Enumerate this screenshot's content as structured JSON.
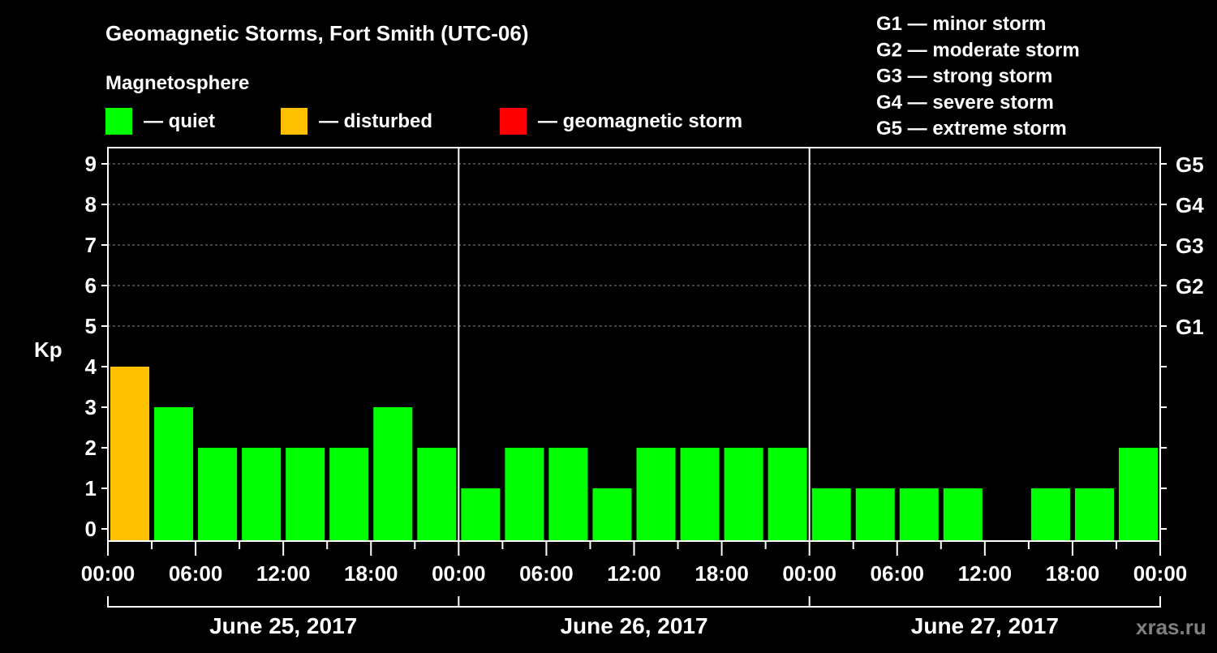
{
  "chart_data": {
    "type": "bar",
    "title": "Geomagnetic Storms, Fort Smith (UTC-06)",
    "legend_title": "Magnetosphere",
    "legend": [
      {
        "label": "— quiet",
        "color": "#00ff00"
      },
      {
        "label": "— disturbed",
        "color": "#ffc000"
      },
      {
        "label": "— geomagnetic storm",
        "color": "#ff0000"
      }
    ],
    "storm_scale": [
      "G1 — minor storm",
      "G2 — moderate storm",
      "G3 — strong storm",
      "G4 — severe storm",
      "G5 — extreme storm"
    ],
    "ylabel": "Kp",
    "ylim": [
      0,
      9
    ],
    "yticks": [
      "0",
      "1",
      "2",
      "3",
      "4",
      "5",
      "6",
      "7",
      "8",
      "9"
    ],
    "right_ticks": [
      {
        "kp": 5,
        "label": "G1"
      },
      {
        "kp": 6,
        "label": "G2"
      },
      {
        "kp": 7,
        "label": "G3"
      },
      {
        "kp": 8,
        "label": "G4"
      },
      {
        "kp": 9,
        "label": "G5"
      }
    ],
    "xtick_labels": [
      "00:00",
      "06:00",
      "12:00",
      "18:00",
      "00:00",
      "06:00",
      "12:00",
      "18:00",
      "00:00",
      "06:00",
      "12:00",
      "18:00",
      "00:00"
    ],
    "days": [
      "June 25, 2017",
      "June 26, 2017",
      "June 27, 2017"
    ],
    "interval_hours": 3,
    "values": [
      4,
      3,
      2,
      2,
      2,
      2,
      3,
      2,
      1,
      2,
      2,
      1,
      2,
      2,
      2,
      2,
      1,
      1,
      1,
      1,
      null,
      1,
      1,
      2
    ],
    "colors": {
      "quiet": "#00ff00",
      "disturbed": "#ffc000",
      "storm": "#ff0000"
    },
    "grid": true,
    "legend_placement": "top"
  },
  "watermark": "xras.ru"
}
